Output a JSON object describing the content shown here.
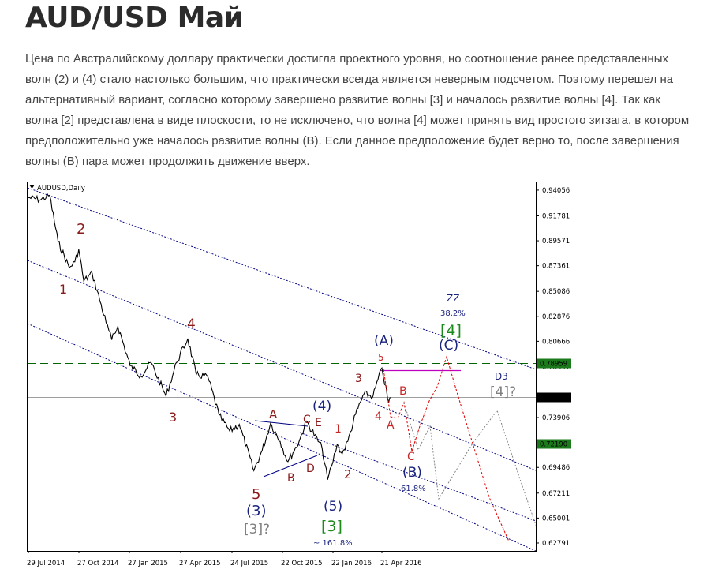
{
  "article": {
    "title": "AUD/USD Май",
    "body": "Цена по Австралийскому доллару практически достигла проектного уровня, но соотношение ранее представленных волн (2) и (4) стало настолько большим, что практически всегда является неверным подсчетом. Поэтому перешел на альтернативный вариант, согласно которому завершено развитие волны [3] и началось развитие волны [4]. Так как волна [2] представлена в виде плоскости, то не исключено, что волна [4] может принять вид простого зигзага, в котором предположительно уже началось развитие волны (B). Если данное предположение будет верно то, после завершения волны (B) пара может продолжить движение вверх."
  },
  "chart_data": {
    "type": "line",
    "title": "AUDUSD,Daily",
    "x_tick_labels": [
      "29 Jul 2014",
      "27 Oct 2014",
      "27 Jan 2015",
      "27 Apr 2015",
      "24 Jul 2015",
      "22 Oct 2015",
      "22 Jan 2016",
      "21 Apr 2016"
    ],
    "y_tick_labels": [
      "0.94056",
      "0.91781",
      "0.89571",
      "0.87361",
      "0.85086",
      "0.82876",
      "0.80666",
      "0.78391",
      "0.73906",
      "0.71695",
      "0.69486",
      "0.67211",
      "0.65001",
      "0.62791"
    ],
    "ylim": [
      0.6209,
      0.9475
    ],
    "price_path": [
      {
        "date": "2014-07-29",
        "close": 0.934
      },
      {
        "date": "2014-08-20",
        "close": 0.932
      },
      {
        "date": "2014-09-05",
        "close": 0.936
      },
      {
        "date": "2014-09-20",
        "close": 0.895
      },
      {
        "date": "2014-10-10",
        "close": 0.872
      },
      {
        "date": "2014-10-20",
        "close": 0.877
      },
      {
        "date": "2014-10-27",
        "close": 0.888
      },
      {
        "date": "2014-11-05",
        "close": 0.86
      },
      {
        "date": "2014-11-20",
        "close": 0.867
      },
      {
        "date": "2014-12-15",
        "close": 0.823
      },
      {
        "date": "2014-12-25",
        "close": 0.808
      },
      {
        "date": "2015-01-05",
        "close": 0.82
      },
      {
        "date": "2015-01-27",
        "close": 0.785
      },
      {
        "date": "2015-02-15",
        "close": 0.776
      },
      {
        "date": "2015-03-05",
        "close": 0.788
      },
      {
        "date": "2015-04-01",
        "close": 0.758
      },
      {
        "date": "2015-04-20",
        "close": 0.788
      },
      {
        "date": "2015-05-10",
        "close": 0.809
      },
      {
        "date": "2015-05-25",
        "close": 0.777
      },
      {
        "date": "2015-06-15",
        "close": 0.775
      },
      {
        "date": "2015-07-05",
        "close": 0.741
      },
      {
        "date": "2015-07-24",
        "close": 0.727
      },
      {
        "date": "2015-08-10",
        "close": 0.733
      },
      {
        "date": "2015-09-05",
        "close": 0.692
      },
      {
        "date": "2015-09-20",
        "close": 0.71
      },
      {
        "date": "2015-10-05",
        "close": 0.734
      },
      {
        "date": "2015-10-22",
        "close": 0.718
      },
      {
        "date": "2015-11-05",
        "close": 0.7
      },
      {
        "date": "2015-11-25",
        "close": 0.718
      },
      {
        "date": "2015-12-08",
        "close": 0.736
      },
      {
        "date": "2016-01-05",
        "close": 0.712
      },
      {
        "date": "2016-01-15",
        "close": 0.684
      },
      {
        "date": "2016-01-22",
        "close": 0.696
      },
      {
        "date": "2016-02-01",
        "close": 0.715
      },
      {
        "date": "2016-02-10",
        "close": 0.707
      },
      {
        "date": "2016-02-20",
        "close": 0.718
      },
      {
        "date": "2016-03-05",
        "close": 0.742
      },
      {
        "date": "2016-03-20",
        "close": 0.76
      },
      {
        "date": "2016-04-05",
        "close": 0.758
      },
      {
        "date": "2016-04-21",
        "close": 0.783
      },
      {
        "date": "2016-05-03",
        "close": 0.752
      },
      {
        "date": "2016-05-06",
        "close": 0.757
      }
    ],
    "current_price": "0.76084",
    "levels": [
      {
        "label": "0.78959",
        "style": "dashed",
        "color": "#006400"
      },
      {
        "label": "0.72190",
        "style": "dashed",
        "color": "#006400"
      }
    ],
    "annotations": [
      {
        "text": "2",
        "color": "#8b1a1a"
      },
      {
        "text": "1",
        "color": "#8b1a1a"
      },
      {
        "text": "4",
        "color": "#8b1a1a"
      },
      {
        "text": "3",
        "color": "#8b1a1a"
      },
      {
        "text": "5",
        "color": "#8b1a1a"
      },
      {
        "text": "(3)",
        "color": "#1a237e"
      },
      {
        "text": "[3]?",
        "color": "#808080"
      },
      {
        "text": "A",
        "color": "#8b1a1a"
      },
      {
        "text": "B",
        "color": "#8b1a1a"
      },
      {
        "text": "C",
        "color": "#8b1a1a"
      },
      {
        "text": "D",
        "color": "#8b1a1a"
      },
      {
        "text": "E",
        "color": "#8b1a1a"
      },
      {
        "text": "(4)",
        "color": "#1a237e"
      },
      {
        "text": "1",
        "color": "#c62828"
      },
      {
        "text": "2",
        "color": "#8b1a1a"
      },
      {
        "text": "(5)",
        "color": "#1a237e"
      },
      {
        "text": "[3]",
        "color": "#1b8a1b"
      },
      {
        "text": "~ 161.8%",
        "color": "#1a237e"
      },
      {
        "text": "3",
        "color": "#8b1a1a"
      },
      {
        "text": "5",
        "color": "#c62828"
      },
      {
        "text": "4",
        "color": "#c62828"
      },
      {
        "text": "(A)",
        "color": "#1a237e"
      },
      {
        "text": "A",
        "color": "#c62828"
      },
      {
        "text": "B",
        "color": "#c62828"
      },
      {
        "text": "C",
        "color": "#c62828"
      },
      {
        "text": "(B)",
        "color": "#1a237e"
      },
      {
        "text": "61.8%",
        "color": "#1a237e"
      },
      {
        "text": "ZZ",
        "color": "#1a237e"
      },
      {
        "text": "38.2%",
        "color": "#1a237e"
      },
      {
        "text": "[4]",
        "color": "#1b8a1b"
      },
      {
        "text": "(C)",
        "color": "#1a237e"
      },
      {
        "text": "D3",
        "color": "#1a237e"
      },
      {
        "text": "[4]?",
        "color": "#808080"
      }
    ],
    "grid": false,
    "colors": {
      "price": "#000000",
      "channels": "#000080",
      "target": "#c000c0",
      "forecast_red": "#e00000",
      "forecast_gray": "#808080"
    }
  }
}
